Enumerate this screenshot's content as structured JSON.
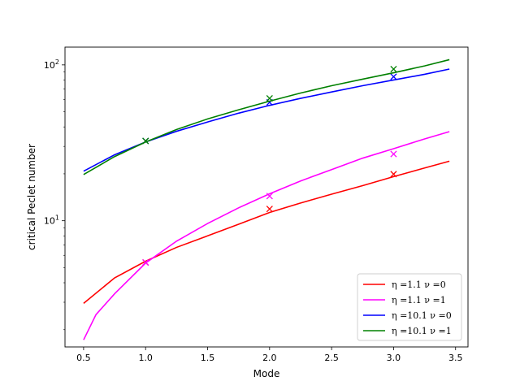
{
  "chart_data": {
    "type": "line",
    "xlabel": "Mode",
    "ylabel": "critical Peclet number",
    "xlim": [
      0.35,
      3.6
    ],
    "ylim": [
      1.55,
      130
    ],
    "yscale": "log",
    "x_ticks": [
      0.5,
      1.0,
      1.5,
      2.0,
      2.5,
      3.0,
      3.5
    ],
    "x_tick_labels": [
      "0.5",
      "1.0",
      "1.5",
      "2.0",
      "2.5",
      "3.0",
      "3.5"
    ],
    "y_ticks_major": [
      10,
      100
    ],
    "y_tick_labels": [
      "10^1",
      "10^2"
    ],
    "legend_location": "lower right",
    "grid": false,
    "series": [
      {
        "name": "η =1.1 ν =0",
        "color": "#ff0000",
        "x": [
          0.5,
          0.75,
          1.0,
          1.25,
          1.5,
          1.75,
          2.0,
          2.25,
          2.5,
          2.75,
          3.0,
          3.25,
          3.45
        ],
        "y": [
          2.95,
          4.3,
          5.5,
          6.75,
          8.0,
          9.5,
          11.3,
          13.0,
          14.8,
          16.8,
          19.2,
          21.8,
          24.1
        ],
        "markers_x": [
          1.0,
          2.0,
          3.0
        ],
        "markers_y": [
          5.4,
          11.9,
          19.9
        ]
      },
      {
        "name": "η =1.1 ν =1",
        "color": "#ff00ff",
        "x": [
          0.5,
          0.6,
          0.75,
          1.0,
          1.25,
          1.5,
          1.75,
          2.0,
          2.25,
          2.5,
          2.75,
          3.0,
          3.25,
          3.45
        ],
        "y": [
          1.72,
          2.5,
          3.4,
          5.35,
          7.4,
          9.6,
          12.1,
          14.9,
          18.0,
          21.3,
          25.2,
          29.0,
          33.5,
          37.3
        ],
        "markers_x": [
          1.0,
          2.0,
          3.0
        ],
        "markers_y": [
          5.4,
          14.4,
          26.8
        ]
      },
      {
        "name": "η =10.1 ν =0",
        "color": "#0000ff",
        "x": [
          0.5,
          0.75,
          1.0,
          1.25,
          1.5,
          1.75,
          2.0,
          2.25,
          2.5,
          2.75,
          3.0,
          3.25,
          3.45
        ],
        "y": [
          20.8,
          26.5,
          32.0,
          37.5,
          43.0,
          49.0,
          55.0,
          61.0,
          67.0,
          73.5,
          80.0,
          87.0,
          94.0
        ],
        "markers_x": [
          1.0,
          2.0,
          3.0
        ],
        "markers_y": [
          32.5,
          57.5,
          84.0
        ]
      },
      {
        "name": "η =10.1 ν =1",
        "color": "#008000",
        "x": [
          0.5,
          0.75,
          1.0,
          1.25,
          1.5,
          1.75,
          2.0,
          2.25,
          2.5,
          2.75,
          3.0,
          3.25,
          3.45
        ],
        "y": [
          19.8,
          25.8,
          32.0,
          38.5,
          45.0,
          51.5,
          58.5,
          66.0,
          73.5,
          81.0,
          89.0,
          98.5,
          108.0
        ],
        "markers_x": [
          1.0,
          2.0,
          3.0
        ],
        "markers_y": [
          32.5,
          61.0,
          94.0
        ]
      }
    ]
  }
}
